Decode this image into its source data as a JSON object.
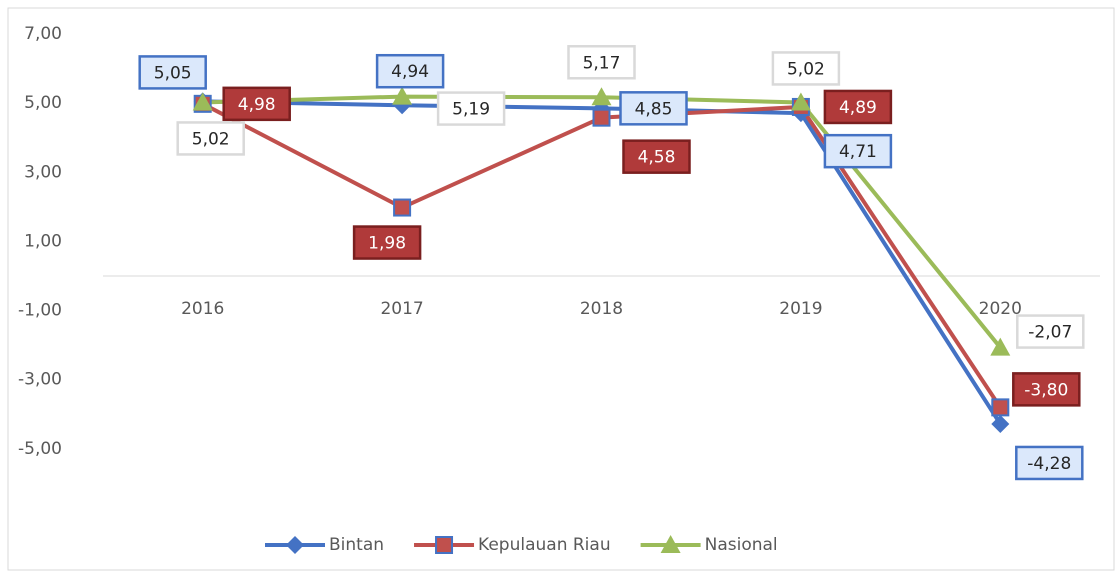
{
  "chart_data": {
    "type": "line",
    "categories": [
      "2016",
      "2017",
      "2018",
      "2019",
      "2020"
    ],
    "series": [
      {
        "name": "Bintan",
        "color": "#4472c4",
        "values": [
          5.05,
          4.94,
          4.85,
          4.71,
          -4.28
        ],
        "value_labels": [
          "5,05",
          "4,94",
          "4,85",
          "4,71",
          "-4,28"
        ]
      },
      {
        "name": "Kepulauan Riau",
        "color": "#c0504d",
        "values": [
          4.98,
          1.98,
          4.58,
          4.89,
          -3.8
        ],
        "value_labels": [
          "4,98",
          "1,98",
          "4,58",
          "4,89",
          "-3,80"
        ]
      },
      {
        "name": "Nasional",
        "color": "#9bbb59",
        "values": [
          5.02,
          5.19,
          5.17,
          5.02,
          -2.07
        ],
        "value_labels": [
          "5,02",
          "5,19",
          "5,17",
          "5,02",
          "-2,07"
        ]
      }
    ],
    "ylim": [
      -7,
      7
    ],
    "yticks": [
      {
        "value": 7,
        "label": "7,00"
      },
      {
        "value": 5,
        "label": "5,00"
      },
      {
        "value": 3,
        "label": "3,00"
      },
      {
        "value": 1,
        "label": "1,00"
      },
      {
        "value": -1,
        "label": "-1,00"
      },
      {
        "value": -3,
        "label": "-3,00"
      },
      {
        "value": -5,
        "label": "-5,00"
      }
    ],
    "legend": "bottom"
  }
}
